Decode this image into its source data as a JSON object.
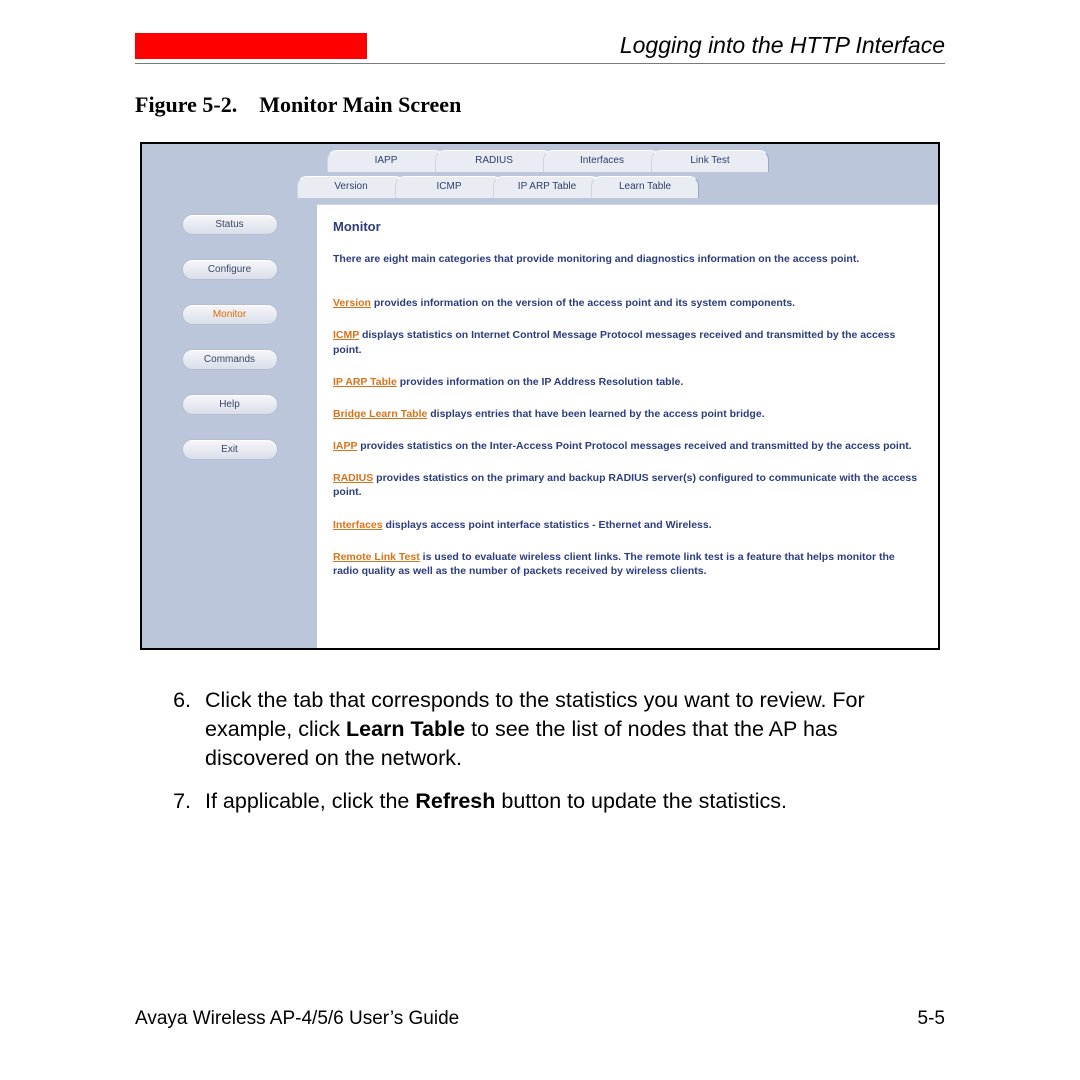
{
  "header": {
    "section_title": "Logging into the HTTP Interface",
    "red_block_color": "#ff0000"
  },
  "figure": {
    "label": "Figure 5-2.",
    "title": "Monitor Main Screen"
  },
  "screenshot": {
    "bg_color": "#bcc6db",
    "tabs_row1": [
      "IAPP",
      "RADIUS",
      "Interfaces",
      "Link Test"
    ],
    "tabs_row2": [
      "Version",
      "ICMP",
      "IP ARP Table",
      "Learn Table"
    ],
    "sidebar_buttons": [
      {
        "label": "Status",
        "active": false
      },
      {
        "label": "Configure",
        "active": false
      },
      {
        "label": "Monitor",
        "active": true
      },
      {
        "label": "Commands",
        "active": false
      },
      {
        "label": "Help",
        "active": false
      },
      {
        "label": "Exit",
        "active": false
      }
    ],
    "panel_title": "Monitor",
    "intro": "There are eight main categories that provide monitoring and diagnostics information on the access point.",
    "link_color": "#d9731a",
    "text_color": "#2c3d7d",
    "items": [
      {
        "link": "Version",
        "text": " provides information on the version of the access point and its system components."
      },
      {
        "link": "ICMP",
        "text": " displays statistics on Internet Control Message Protocol messages received and transmitted by the access point."
      },
      {
        "link": "IP ARP Table",
        "text": " provides information on the IP Address Resolution table."
      },
      {
        "link": "Bridge Learn Table",
        "text": " displays entries that have been learned by the access point bridge."
      },
      {
        "link": "IAPP",
        "text": " provides statistics on the Inter-Access Point Protocol messages received and transmitted by the access point."
      },
      {
        "link": "RADIUS",
        "text": " provides statistics on the primary and backup RADIUS server(s) configured to communicate with the access point."
      },
      {
        "link": "Interfaces",
        "text": " displays access point interface statistics - Ethernet and Wireless."
      },
      {
        "link": "Remote Link Test",
        "text": " is used to evaluate wireless client links. The remote link test is a feature that helps monitor the radio quality as well as the number of packets received by wireless clients."
      }
    ]
  },
  "instructions": {
    "item6_num": "6.",
    "item6_pre": "Click the tab that corresponds to the statistics you want to review. For example, click ",
    "item6_bold": "Learn Table",
    "item6_post": " to see the list of nodes that the AP has discovered on the network.",
    "item7_num": "7.",
    "item7_pre": "If applicable, click the ",
    "item7_bold": "Refresh",
    "item7_post": " button to update the statistics."
  },
  "footer": {
    "left": "Avaya Wireless AP-4/5/6 User’s Guide",
    "right": "5-5"
  }
}
